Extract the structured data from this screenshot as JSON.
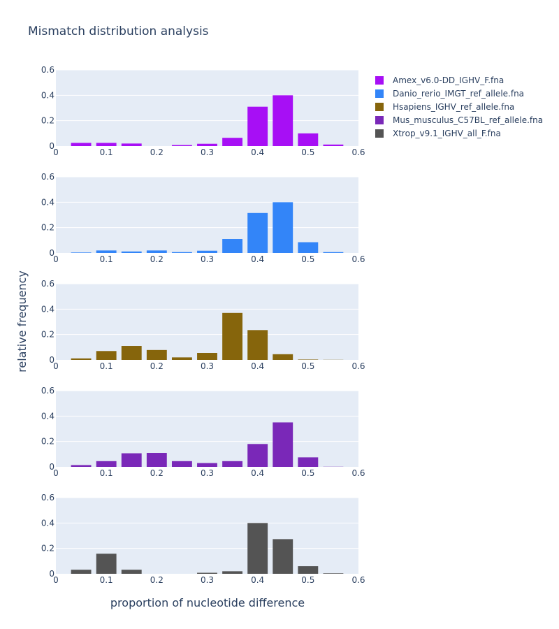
{
  "chart_data": {
    "type": "bar",
    "title": "Mismatch distribution analysis",
    "xlabel": "proportion of nucleotide difference",
    "ylabel": "relative frequency",
    "xlim": [
      0,
      0.6
    ],
    "ylim": [
      0,
      0.6
    ],
    "x_ticks": [
      "0",
      "0.1",
      "0.2",
      "0.3",
      "0.4",
      "0.5",
      "0.6"
    ],
    "y_ticks": [
      "0",
      "0.2",
      "0.4",
      "0.6"
    ],
    "grid": true,
    "legend_position": "top-right",
    "bar_centers": [
      0.05,
      0.1,
      0.15,
      0.2,
      0.25,
      0.3,
      0.35,
      0.4,
      0.45,
      0.5,
      0.55
    ],
    "bar_width": 0.04,
    "series": [
      {
        "name": "Amex_v6.0-DD_IGHV_F.fna",
        "color": "#a70ff5",
        "values": [
          0.025,
          0.025,
          0.02,
          0.0,
          0.008,
          0.018,
          0.065,
          0.31,
          0.4,
          0.1,
          0.012
        ]
      },
      {
        "name": "Danio_rerio_IMGT_ref_allele.fna",
        "color": "#3385f8",
        "values": [
          0.004,
          0.02,
          0.012,
          0.02,
          0.007,
          0.018,
          0.11,
          0.315,
          0.4,
          0.085,
          0.007
        ]
      },
      {
        "name": "Hsapiens_IGHV_ref_allele.fna",
        "color": "#86650c",
        "values": [
          0.012,
          0.07,
          0.11,
          0.078,
          0.02,
          0.055,
          0.37,
          0.235,
          0.045,
          0.003,
          0.001
        ]
      },
      {
        "name": "Mus_musculus_C57BL_ref_allele.fna",
        "color": "#7a28b8",
        "values": [
          0.014,
          0.045,
          0.107,
          0.11,
          0.045,
          0.03,
          0.045,
          0.18,
          0.35,
          0.075,
          0.001
        ]
      },
      {
        "name": "Xtrop_v9.1_IGHV_all_F.fna",
        "color": "#545454",
        "values": [
          0.032,
          0.158,
          0.032,
          0.0,
          0.0,
          0.008,
          0.02,
          0.4,
          0.273,
          0.06,
          0.004
        ]
      }
    ]
  }
}
